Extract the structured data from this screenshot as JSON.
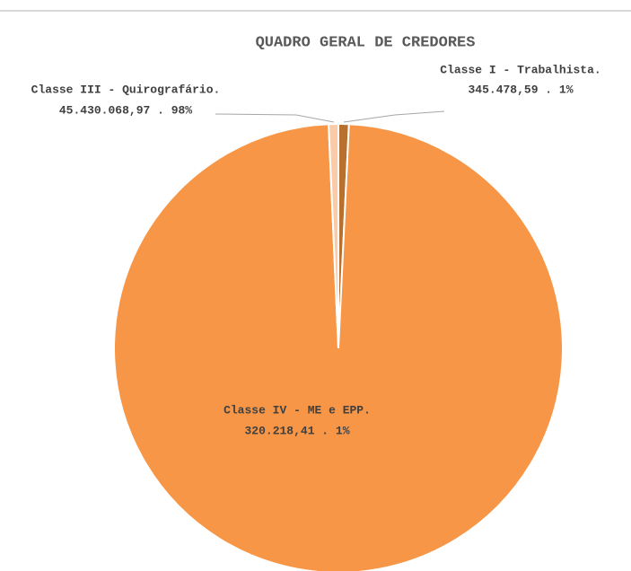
{
  "chart_data": {
    "type": "pie",
    "title": "QUADRO GERAL DE CREDORES",
    "categories": [
      "Classe I - Trabalhista.",
      "Classe III - Quirografário.",
      "Classe IV - ME e EPP."
    ],
    "values": [
      345478.59,
      45430068.97,
      320218.41
    ],
    "value_labels": [
      "345.478,59 . 1%",
      "45.430.068,97 . 98%",
      "320.218,41 . 1%"
    ],
    "colors": [
      "#b8702e",
      "#f79646",
      "#fbcba8"
    ]
  }
}
